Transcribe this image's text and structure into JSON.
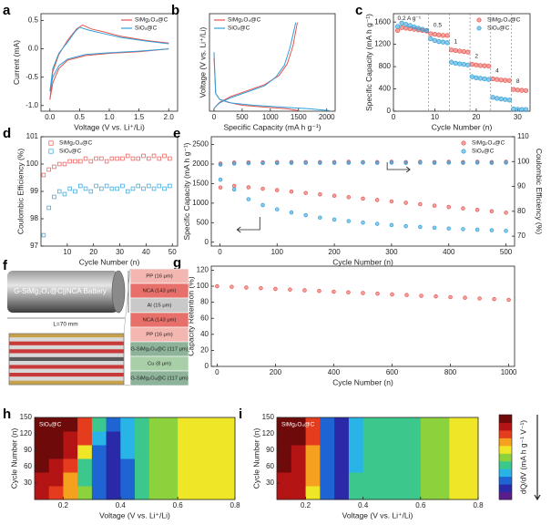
{
  "chart_data": [
    {
      "panel": "a",
      "type": "line",
      "xlabel": "Voltage (V vs. Li⁺/Li)",
      "ylabel": "Current (mA)",
      "xlim": [
        -0.15,
        2.15
      ],
      "xticks": [
        {
          "value": 0,
          "label": "0.0"
        },
        {
          "value": 0.5,
          "label": "0.5"
        },
        {
          "value": 1,
          "label": "1.0"
        },
        {
          "value": 1.5,
          "label": "1.5"
        },
        {
          "value": 2,
          "label": "2.0"
        }
      ],
      "ylim": [
        -1.1,
        0.62
      ],
      "yticks": [
        {
          "value": -1,
          "label": "-1.0"
        },
        {
          "value": -0.5,
          "label": "-0.5"
        },
        {
          "value": 0,
          "label": "0.0"
        },
        {
          "value": 0.5,
          "label": "0.5"
        }
      ],
      "legend": "upper right",
      "series": [
        {
          "name": "SiMg₂O₄@C",
          "color": "#e8544e",
          "x": [
            2.0,
            1.5,
            1.0,
            0.6,
            0.3,
            0.15,
            0.05,
            0.0,
            0.05,
            0.15,
            0.3,
            0.45,
            0.55,
            0.7,
            0.9,
            1.2,
            1.6,
            2.0
          ],
          "values": [
            0.0,
            -0.05,
            -0.08,
            -0.12,
            -0.2,
            -0.35,
            -0.6,
            -0.9,
            -0.4,
            -0.1,
            0.15,
            0.35,
            0.42,
            0.35,
            0.3,
            0.22,
            0.15,
            0.1
          ]
        },
        {
          "name": "SiOₓ@C",
          "color": "#2e9fd8",
          "x": [
            2.0,
            1.5,
            1.0,
            0.6,
            0.3,
            0.15,
            0.05,
            0.0,
            0.05,
            0.15,
            0.3,
            0.42,
            0.5,
            0.65,
            0.9,
            1.2,
            1.6,
            2.0
          ],
          "values": [
            0.0,
            -0.04,
            -0.07,
            -0.1,
            -0.18,
            -0.3,
            -0.5,
            -0.75,
            -0.35,
            -0.08,
            0.12,
            0.3,
            0.38,
            0.33,
            0.27,
            0.2,
            0.14,
            0.09
          ]
        }
      ]
    },
    {
      "panel": "b",
      "type": "line",
      "xlabel": "Specific Capacity (mA h g⁻¹)",
      "ylabel": "Voltage (V vs. Li⁺/Li)",
      "xlim": [
        -80,
        2150
      ],
      "xticks": [
        0,
        500,
        1000,
        1500,
        2000
      ],
      "ylim": [
        0,
        1.65
      ],
      "legend": "upper left",
      "series": [
        {
          "name": "SiMg₂O₄@C",
          "color": "#e8544e",
          "x": [
            0,
            30,
            100,
            250,
            500,
            900,
            1300,
            1500,
            null,
            0,
            100,
            300,
            600,
            900,
            1150,
            1300,
            1400,
            1480
          ],
          "values": [
            0.9,
            0.3,
            0.2,
            0.15,
            0.1,
            0.07,
            0.04,
            0.01,
            null,
            0.05,
            0.15,
            0.25,
            0.35,
            0.45,
            0.6,
            0.8,
            1.1,
            1.5
          ]
        },
        {
          "name": "SiOₓ@C",
          "color": "#2e9fd8",
          "x": [
            0,
            30,
            100,
            300,
            700,
            1200,
            1700,
            2050,
            null,
            0,
            100,
            300,
            600,
            900,
            1100,
            1250,
            1350,
            1450
          ],
          "values": [
            1.0,
            0.3,
            0.2,
            0.14,
            0.1,
            0.07,
            0.04,
            0.01,
            null,
            0.05,
            0.14,
            0.23,
            0.33,
            0.43,
            0.58,
            0.78,
            1.08,
            1.5
          ]
        }
      ]
    },
    {
      "panel": "c",
      "type": "scatter",
      "marker": "circle",
      "filled": true,
      "xlabel": "Cycle Number (n)",
      "ylabel": "Specific Capacity (mA h g⁻¹)",
      "xlim": [
        0,
        33
      ],
      "xticks": [
        0,
        10,
        20,
        30
      ],
      "ylim": [
        0,
        1750
      ],
      "yticks": [
        0,
        400,
        800,
        1200,
        1600
      ],
      "legend": "upper right",
      "rate_groups": [
        {
          "label": "0.2 A g⁻¹",
          "start": 1
        },
        {
          "label": "0.5",
          "start": 9
        },
        {
          "label": "1",
          "start": 14
        },
        {
          "label": "2",
          "start": 19
        },
        {
          "label": "4",
          "start": 24
        },
        {
          "label": "8",
          "start": 29
        }
      ],
      "x": [
        1,
        2,
        3,
        4,
        5,
        6,
        7,
        8,
        9,
        10,
        11,
        12,
        13,
        14,
        15,
        16,
        17,
        18,
        19,
        20,
        21,
        22,
        23,
        24,
        25,
        26,
        27,
        28,
        29,
        30,
        31,
        32
      ],
      "series": [
        {
          "name": "SiMg₂O₄@C",
          "color": "#e8544e",
          "values": [
            1450,
            1500,
            1490,
            1480,
            1470,
            1460,
            1450,
            1440,
            1390,
            1380,
            1370,
            1360,
            1360,
            1100,
            1090,
            1080,
            1070,
            1060,
            840,
            830,
            820,
            815,
            810,
            580,
            570,
            560,
            555,
            550,
            390,
            380,
            375,
            370
          ]
        },
        {
          "name": "SiOₓ@C",
          "color": "#2e9fd8",
          "values": [
            1520,
            1580,
            1560,
            1540,
            1510,
            1490,
            1470,
            1450,
            1300,
            1270,
            1250,
            1240,
            1230,
            880,
            860,
            850,
            840,
            830,
            620,
            600,
            590,
            580,
            570,
            250,
            230,
            220,
            210,
            200,
            40,
            35,
            30,
            30
          ]
        }
      ]
    },
    {
      "panel": "d",
      "type": "scatter",
      "marker": "square",
      "filled": false,
      "xlabel": "Cycle Number (n)",
      "ylabel": "Coulombic Efficiency (%)",
      "xlim": [
        0,
        52
      ],
      "xticks": [
        10,
        20,
        30,
        40,
        50
      ],
      "ylim": [
        97,
        101
      ],
      "yticks": [
        97,
        98,
        99,
        100,
        101
      ],
      "legend": "upper left",
      "x": [
        1,
        3,
        5,
        7,
        9,
        11,
        13,
        15,
        17,
        19,
        21,
        23,
        25,
        27,
        29,
        31,
        33,
        35,
        37,
        39,
        41,
        43,
        45,
        47,
        49
      ],
      "series": [
        {
          "name": "SiMg₂O₄@C",
          "color": "#e8544e",
          "values": [
            99.6,
            99.8,
            99.9,
            100.0,
            100.0,
            100.1,
            100.1,
            100.1,
            100.2,
            100.1,
            100.2,
            100.2,
            100.1,
            100.2,
            100.2,
            100.2,
            100.3,
            100.2,
            100.2,
            100.3,
            100.2,
            100.3,
            100.2,
            100.3,
            100.2
          ]
        },
        {
          "name": "SiOₓ@C",
          "color": "#2e9fd8",
          "values": [
            97.4,
            98.4,
            98.8,
            99.0,
            98.9,
            99.1,
            99.0,
            99.2,
            99.1,
            99.0,
            99.2,
            99.1,
            99.2,
            99.1,
            99.1,
            99.2,
            99.0,
            99.1,
            99.2,
            99.1,
            99.2,
            99.1,
            99.2,
            99.1,
            99.2
          ]
        }
      ]
    },
    {
      "panel": "e",
      "type": "scatter",
      "marker": "circle",
      "filled": true,
      "xlabel": "Cycle Number (n)",
      "ylabel": "Specific Capacity (mA h g⁻¹)",
      "y2label": "Coulombic Efficiency (%)",
      "xlim": [
        -15,
        515
      ],
      "xticks": [
        0,
        100,
        200,
        300,
        400,
        500
      ],
      "ylim": [
        -100,
        2700
      ],
      "yticks": [
        0,
        500,
        1000,
        1500,
        2000,
        2500
      ],
      "y2lim": [
        66,
        110
      ],
      "y2ticks": [
        70,
        80,
        90,
        100,
        110
      ],
      "legend": "upper right",
      "x": [
        1,
        25,
        50,
        75,
        100,
        125,
        150,
        175,
        200,
        225,
        250,
        275,
        300,
        325,
        350,
        375,
        400,
        425,
        450,
        475,
        500
      ],
      "series": [
        {
          "name": "SiMg₂O₄@C",
          "color": "#e8544e",
          "values": [
            1400,
            1440,
            1404,
            1368,
            1332,
            1296,
            1260,
            1224,
            1188,
            1152,
            1116,
            1080,
            1044,
            1008,
            972,
            936,
            900,
            864,
            828,
            792,
            756
          ]
        },
        {
          "name": "SiOₓ@C",
          "color": "#2e9fd8",
          "values": [
            1600,
            1350,
            1100,
            950,
            840,
            760,
            690,
            630,
            580,
            540,
            500,
            470,
            440,
            410,
            390,
            370,
            350,
            335,
            320,
            305,
            290
          ]
        },
        {
          "color": "#e8544e",
          "axis": "y2",
          "values": [
            99.2,
            99.6,
            99.7,
            99.7,
            99.8,
            99.8,
            99.8,
            99.8,
            99.8,
            99.9,
            99.8,
            99.8,
            99.9,
            99.8,
            99.9,
            99.8,
            99.9,
            99.8,
            99.9,
            99.8,
            99.9
          ]
        },
        {
          "color": "#2e9fd8",
          "axis": "y2",
          "values": [
            98.8,
            99.2,
            99.3,
            99.4,
            99.4,
            99.5,
            99.5,
            99.5,
            99.5,
            99.5,
            99.6,
            99.5,
            99.6,
            99.5,
            99.6,
            99.5,
            99.6,
            99.5,
            99.6,
            99.5,
            99.6
          ]
        }
      ]
    },
    {
      "panel": "g",
      "type": "scatter",
      "marker": "circle",
      "filled": true,
      "xlabel": "Cycle Number (n)",
      "ylabel": "Capacity Retention (%)",
      "xlim": [
        -20,
        1020
      ],
      "xticks": [
        0,
        200,
        400,
        600,
        800,
        1000
      ],
      "ylim": [
        0,
        125
      ],
      "yticks": [
        0,
        20,
        40,
        60,
        80,
        100,
        120
      ],
      "x": [
        0,
        50,
        100,
        150,
        200,
        250,
        300,
        350,
        400,
        450,
        500,
        550,
        600,
        650,
        700,
        750,
        800,
        850,
        900,
        950,
        1000
      ],
      "series": [
        {
          "color": "#e8544e",
          "values": [
            100,
            99.2,
            98.3,
            97.5,
            96.6,
            95.8,
            94.9,
            94.1,
            93.2,
            92.4,
            91.5,
            90.7,
            89.8,
            89.0,
            88.1,
            87.3,
            86.4,
            85.6,
            84.7,
            83.9,
            83.0
          ]
        }
      ]
    },
    {
      "panel": "h",
      "type": "heatmap",
      "label": "SiOₓ@C",
      "xlabel": "Voltage (V vs. Li⁺/Li)",
      "ylabel": "Cycle Number (n)",
      "xlim": [
        0.1,
        0.8
      ],
      "xticks": [
        0.2,
        0.4,
        0.6,
        0.8
      ],
      "ylim": [
        0,
        150
      ],
      "yticks": [
        30,
        60,
        90,
        120,
        150
      ],
      "zlim": [
        0,
        10
      ],
      "x": [
        0.125,
        0.175,
        0.225,
        0.275,
        0.325,
        0.375,
        0.425,
        0.475,
        0.525,
        0.575,
        0.625,
        0.675,
        0.725,
        0.775
      ],
      "y": [
        12.5,
        37.5,
        62.5,
        87.5,
        112.5,
        137.5
      ],
      "z": [
        [
          9,
          8,
          7,
          5,
          2,
          1,
          2,
          4,
          5,
          5,
          6,
          6,
          6,
          6
        ],
        [
          9,
          9,
          7,
          4,
          2,
          1,
          2,
          4,
          5,
          5,
          6,
          6,
          6,
          6
        ],
        [
          10,
          9,
          8,
          4,
          2,
          1,
          2,
          4,
          5,
          5,
          6,
          6,
          6,
          6
        ],
        [
          10,
          10,
          9,
          6,
          2,
          1,
          3,
          4,
          5,
          5,
          6,
          6,
          6,
          6
        ],
        [
          10,
          10,
          9,
          8,
          3,
          1,
          3,
          4,
          5,
          5,
          6,
          6,
          6,
          6
        ],
        [
          10,
          10,
          10,
          8,
          4,
          2,
          3,
          4,
          5,
          5,
          6,
          6,
          6,
          6
        ]
      ]
    },
    {
      "panel": "i",
      "type": "heatmap",
      "label": "SiMg₂O₄@C",
      "xlabel": "Voltage (V vs. Li⁺/Li)",
      "ylabel": "Cycle Number (n)",
      "xlim": [
        0.1,
        0.8
      ],
      "xticks": [
        0.2,
        0.4,
        0.6,
        0.8
      ],
      "ylim": [
        0,
        150
      ],
      "yticks": [
        30,
        60,
        90,
        120,
        150
      ],
      "zlim": [
        0,
        10
      ],
      "x": [
        0.125,
        0.175,
        0.225,
        0.275,
        0.325,
        0.375,
        0.425,
        0.475,
        0.525,
        0.575,
        0.625,
        0.675,
        0.725,
        0.775
      ],
      "y": [
        12.5,
        37.5,
        62.5,
        87.5,
        112.5,
        137.5
      ],
      "z": [
        [
          9,
          9,
          6,
          2,
          1,
          4,
          4,
          4,
          4,
          4,
          5,
          5,
          6,
          6
        ],
        [
          9,
          9,
          7,
          2,
          1,
          4,
          4,
          4,
          4,
          4,
          5,
          5,
          6,
          6
        ],
        [
          10,
          9,
          7,
          2,
          1,
          3,
          4,
          4,
          4,
          4,
          5,
          5,
          6,
          6
        ],
        [
          10,
          9,
          7,
          2,
          1,
          3,
          4,
          4,
          4,
          4,
          5,
          5,
          6,
          6
        ],
        [
          10,
          10,
          8,
          2,
          1,
          3,
          4,
          4,
          4,
          4,
          5,
          5,
          6,
          6
        ],
        [
          10,
          10,
          8,
          2,
          1,
          3,
          4,
          4,
          4,
          4,
          5,
          5,
          6,
          6
        ]
      ]
    }
  ],
  "colorbar": {
    "label": "dQ/dV (mA h g⁻¹ V⁻¹)",
    "colors": [
      "#5a1e8c",
      "#2a2aa8",
      "#1e64d2",
      "#28b4e6",
      "#3cc88c",
      "#8cd23c",
      "#f0e628",
      "#f5a01e",
      "#e63c1e",
      "#b41414",
      "#6e0a0a"
    ]
  },
  "schematic": {
    "panel": "f",
    "battery_label": "G-SiMg₂O₄@C||NCA Battery",
    "diameter": "D=21 mm",
    "length": "L=70 mm",
    "layers": [
      {
        "label": "PP (16 μm)",
        "color": "#f3b6b0"
      },
      {
        "label": "NCA (143 μm)",
        "color": "#e7716a"
      },
      {
        "label": "Al (15 μm)",
        "color": "#c9c9c9"
      },
      {
        "label": "NCA (143 μm)",
        "color": "#e7716a"
      },
      {
        "label": "PP (16 μm)",
        "color": "#f3b6b0"
      },
      {
        "label": "G-SiMg₂O₄@C (117 μm)",
        "color": "#8db49a"
      },
      {
        "label": "Cu (8 μm)",
        "color": "#a9cfa8"
      },
      {
        "label": "G-SiMg₂O₄@C (117 μm)",
        "color": "#8db49a"
      }
    ]
  }
}
